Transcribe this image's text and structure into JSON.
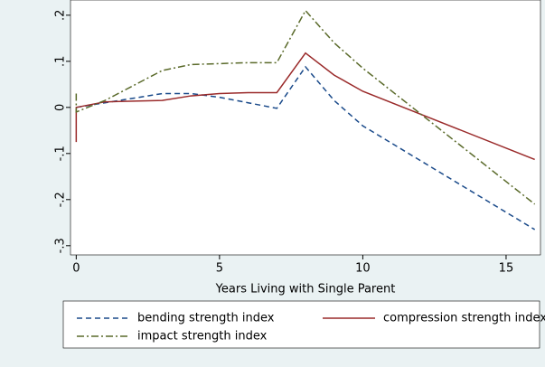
{
  "chart_data": {
    "type": "line",
    "x_label": "Years Living with Single Parent",
    "x": [
      0,
      0,
      1,
      3,
      4,
      5,
      6,
      7,
      8,
      9,
      10,
      16
    ],
    "series": [
      {
        "name": "bending strength index",
        "color": "#1a4a8a",
        "dash": "6,4",
        "values": [
          0.0,
          0.0,
          0.01,
          0.03,
          0.03,
          0.022,
          0.01,
          -0.002,
          0.088,
          0.015,
          -0.04,
          -0.265
        ]
      },
      {
        "name": "compression strength index",
        "color": "#9a2a2a",
        "dash": "",
        "values": [
          -0.075,
          0.0,
          0.012,
          0.015,
          0.025,
          0.03,
          0.032,
          0.032,
          0.118,
          0.07,
          0.035,
          -0.113
        ]
      },
      {
        "name": "impact strength index",
        "color": "#5a6a2a",
        "dash": "8,3,2,3",
        "values": [
          0.03,
          -0.01,
          0.015,
          0.08,
          0.093,
          0.095,
          0.097,
          0.097,
          0.21,
          0.14,
          0.085,
          -0.21
        ]
      }
    ],
    "xlim": [
      -0.2,
      16.2
    ],
    "xticks": [
      0,
      5,
      10,
      15
    ],
    "ylim": [
      -0.32,
      0.233
    ],
    "yticks": [
      {
        "value": -0.3,
        "label": "-.3"
      },
      {
        "value": -0.2,
        "label": "-.2"
      },
      {
        "value": -0.1,
        "label": "-.1"
      },
      0,
      {
        "value": 0.1,
        "label": ".1"
      },
      {
        "value": 0.2,
        "label": ".2"
      }
    ]
  }
}
